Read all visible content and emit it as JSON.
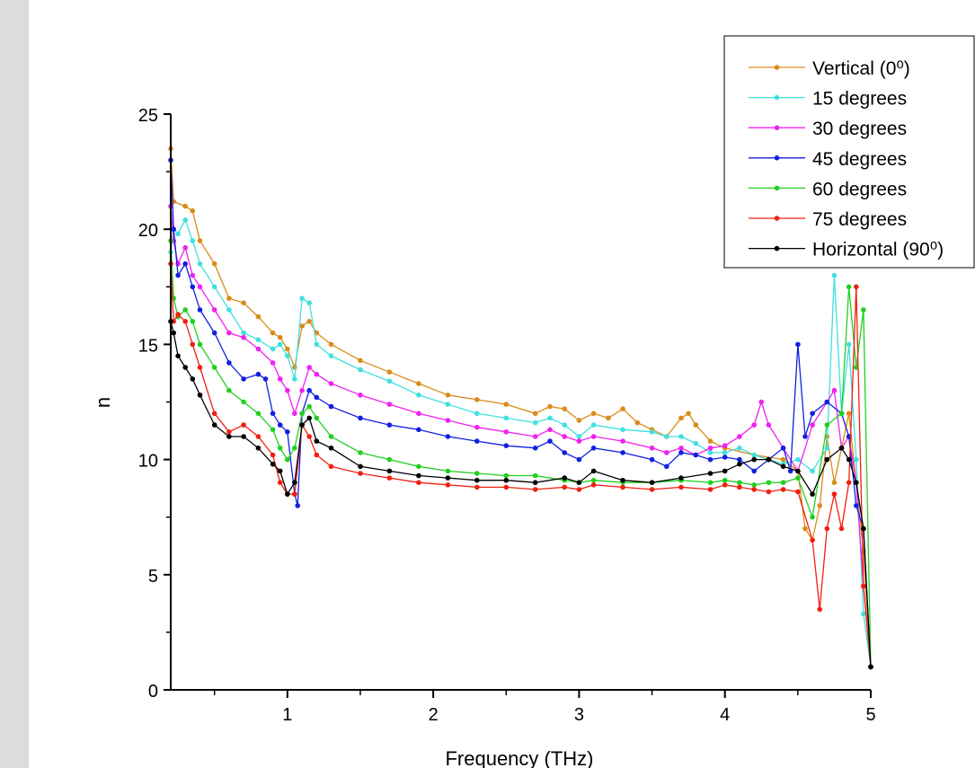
{
  "chart_data": {
    "type": "line",
    "title": "",
    "xlabel": "Frequency (THz)",
    "ylabel": "n",
    "xlim": [
      0.2,
      5.0
    ],
    "ylim": [
      0,
      25
    ],
    "x_ticks": [
      "1",
      "2",
      "3",
      "4",
      "5"
    ],
    "y_ticks": [
      "0",
      "5",
      "10",
      "15",
      "20",
      "25"
    ],
    "grid": false,
    "legend_position": "top-right",
    "series": [
      {
        "name": "Vertical (0⁰)",
        "color": "#d98c19",
        "x": [
          0.2,
          0.22,
          0.3,
          0.35,
          0.4,
          0.5,
          0.6,
          0.7,
          0.8,
          0.9,
          0.95,
          1.0,
          1.05,
          1.1,
          1.15,
          1.2,
          1.3,
          1.5,
          1.7,
          1.9,
          2.1,
          2.3,
          2.5,
          2.7,
          2.8,
          2.9,
          3.0,
          3.1,
          3.2,
          3.3,
          3.4,
          3.5,
          3.6,
          3.7,
          3.75,
          3.8,
          3.9,
          4.0,
          4.2,
          4.4,
          4.5,
          4.55,
          4.6,
          4.65,
          4.7,
          4.75,
          4.8,
          4.85,
          4.9,
          4.95,
          5.0
        ],
        "y": [
          23.5,
          21.2,
          21.0,
          20.8,
          19.5,
          18.5,
          17.0,
          16.8,
          16.2,
          15.5,
          15.3,
          14.8,
          14.0,
          15.8,
          16.0,
          15.5,
          15.0,
          14.3,
          13.8,
          13.3,
          12.8,
          12.6,
          12.4,
          12.0,
          12.3,
          12.2,
          11.7,
          12.0,
          11.8,
          12.2,
          11.6,
          11.3,
          11.0,
          11.8,
          12.0,
          11.5,
          10.8,
          10.5,
          10.2,
          10.0,
          9.5,
          7.0,
          6.5,
          8.0,
          11.0,
          9.0,
          10.5,
          12.0,
          9.0,
          6.0,
          1.0
        ]
      },
      {
        "name": "15 degrees",
        "color": "#40e0e0",
        "x": [
          0.2,
          0.22,
          0.25,
          0.3,
          0.35,
          0.4,
          0.5,
          0.6,
          0.7,
          0.8,
          0.9,
          0.95,
          1.0,
          1.05,
          1.1,
          1.15,
          1.2,
          1.3,
          1.5,
          1.7,
          1.9,
          2.1,
          2.3,
          2.5,
          2.7,
          2.8,
          2.9,
          3.0,
          3.1,
          3.3,
          3.5,
          3.6,
          3.7,
          3.8,
          3.9,
          4.0,
          4.1,
          4.2,
          4.3,
          4.4,
          4.5,
          4.6,
          4.7,
          4.75,
          4.8,
          4.85,
          4.9,
          4.95,
          5.0
        ],
        "y": [
          19.0,
          20.0,
          19.8,
          20.4,
          19.5,
          18.5,
          17.5,
          16.5,
          15.5,
          15.2,
          14.8,
          15.0,
          14.5,
          13.5,
          17.0,
          16.8,
          15.0,
          14.5,
          13.9,
          13.4,
          12.8,
          12.4,
          12.0,
          11.8,
          11.6,
          11.8,
          11.5,
          11.0,
          11.5,
          11.3,
          11.2,
          11.0,
          11.0,
          10.7,
          10.3,
          10.3,
          10.5,
          10.2,
          10.0,
          9.8,
          10.0,
          9.5,
          10.5,
          18.0,
          12.0,
          15.0,
          10.0,
          3.3,
          1.0
        ]
      },
      {
        "name": "30 degrees",
        "color": "#f020f0",
        "x": [
          0.2,
          0.22,
          0.25,
          0.3,
          0.35,
          0.4,
          0.5,
          0.6,
          0.7,
          0.8,
          0.9,
          0.95,
          1.0,
          1.05,
          1.1,
          1.15,
          1.2,
          1.3,
          1.5,
          1.7,
          1.9,
          2.1,
          2.3,
          2.5,
          2.7,
          2.8,
          2.9,
          3.0,
          3.1,
          3.3,
          3.5,
          3.6,
          3.7,
          3.8,
          3.9,
          4.0,
          4.1,
          4.2,
          4.25,
          4.3,
          4.4,
          4.5,
          4.6,
          4.7,
          4.75,
          4.8,
          4.85,
          4.9,
          4.95,
          5.0
        ],
        "y": [
          21.0,
          19.5,
          18.5,
          19.2,
          18.0,
          17.5,
          16.5,
          15.5,
          15.3,
          14.8,
          14.2,
          13.5,
          13.0,
          12.0,
          13.0,
          14.0,
          13.7,
          13.3,
          12.8,
          12.4,
          12.0,
          11.7,
          11.4,
          11.2,
          11.0,
          11.3,
          11.0,
          10.8,
          11.0,
          10.8,
          10.5,
          10.3,
          10.5,
          10.2,
          10.5,
          10.6,
          11.0,
          11.5,
          12.5,
          11.5,
          10.5,
          9.5,
          11.5,
          12.5,
          13.0,
          10.5,
          11.0,
          9.0,
          4.5,
          1.0
        ]
      },
      {
        "name": "45 degrees",
        "color": "#1020e0",
        "x": [
          0.2,
          0.22,
          0.25,
          0.3,
          0.35,
          0.4,
          0.5,
          0.6,
          0.7,
          0.8,
          0.85,
          0.9,
          0.95,
          1.0,
          1.05,
          1.07,
          1.1,
          1.15,
          1.2,
          1.3,
          1.5,
          1.7,
          1.9,
          2.1,
          2.3,
          2.5,
          2.7,
          2.8,
          2.9,
          3.0,
          3.1,
          3.3,
          3.5,
          3.6,
          3.7,
          3.8,
          3.9,
          4.0,
          4.1,
          4.2,
          4.3,
          4.4,
          4.45,
          4.5,
          4.55,
          4.6,
          4.7,
          4.8,
          4.85,
          4.9,
          4.95,
          5.0
        ],
        "y": [
          23.0,
          20.0,
          18.0,
          18.5,
          17.5,
          16.5,
          15.5,
          14.2,
          13.5,
          13.7,
          13.5,
          12.0,
          11.5,
          11.2,
          8.5,
          8.0,
          12.0,
          13.0,
          12.7,
          12.3,
          11.8,
          11.5,
          11.3,
          11.0,
          10.8,
          10.6,
          10.5,
          10.8,
          10.3,
          10.0,
          10.5,
          10.3,
          10.0,
          9.7,
          10.3,
          10.2,
          10.0,
          10.1,
          10.0,
          9.5,
          10.0,
          10.5,
          9.5,
          15.0,
          11.0,
          12.0,
          12.5,
          12.0,
          11.0,
          8.0,
          7.0,
          1.0
        ]
      },
      {
        "name": "60 degrees",
        "color": "#20d020",
        "x": [
          0.2,
          0.22,
          0.25,
          0.3,
          0.35,
          0.4,
          0.5,
          0.6,
          0.7,
          0.8,
          0.9,
          0.95,
          1.0,
          1.05,
          1.1,
          1.15,
          1.2,
          1.3,
          1.5,
          1.7,
          1.9,
          2.1,
          2.3,
          2.5,
          2.7,
          2.9,
          3.0,
          3.1,
          3.3,
          3.5,
          3.7,
          3.9,
          4.0,
          4.1,
          4.2,
          4.3,
          4.4,
          4.5,
          4.6,
          4.7,
          4.8,
          4.85,
          4.9,
          4.95,
          5.0
        ],
        "y": [
          19.5,
          17.0,
          16.2,
          16.5,
          16.0,
          15.0,
          14.0,
          13.0,
          12.5,
          12.0,
          11.3,
          10.5,
          10.0,
          10.5,
          12.0,
          12.3,
          11.8,
          11.0,
          10.3,
          10.0,
          9.7,
          9.5,
          9.4,
          9.3,
          9.3,
          9.1,
          9.0,
          9.1,
          9.0,
          9.0,
          9.1,
          9.0,
          9.1,
          9.0,
          8.9,
          9.0,
          9.0,
          9.2,
          7.5,
          11.5,
          12.0,
          17.5,
          14.0,
          16.5,
          1.0
        ]
      },
      {
        "name": "75 degrees",
        "color": "#f02010",
        "x": [
          0.2,
          0.22,
          0.25,
          0.3,
          0.35,
          0.4,
          0.5,
          0.6,
          0.7,
          0.8,
          0.9,
          0.95,
          1.0,
          1.05,
          1.1,
          1.15,
          1.2,
          1.3,
          1.5,
          1.7,
          1.9,
          2.1,
          2.3,
          2.5,
          2.7,
          2.9,
          3.0,
          3.1,
          3.3,
          3.5,
          3.7,
          3.9,
          4.0,
          4.1,
          4.2,
          4.3,
          4.4,
          4.5,
          4.6,
          4.65,
          4.7,
          4.75,
          4.8,
          4.85,
          4.9,
          4.95,
          5.0
        ],
        "y": [
          18.5,
          16.0,
          16.3,
          16.0,
          15.0,
          14.0,
          12.0,
          11.2,
          11.5,
          11.0,
          10.2,
          9.0,
          8.5,
          8.5,
          11.5,
          11.0,
          10.2,
          9.7,
          9.4,
          9.2,
          9.0,
          8.9,
          8.8,
          8.8,
          8.7,
          8.8,
          8.7,
          8.9,
          8.8,
          8.7,
          8.8,
          8.7,
          8.9,
          8.8,
          8.7,
          8.6,
          8.7,
          8.6,
          6.5,
          3.5,
          7.0,
          8.5,
          7.0,
          9.0,
          17.5,
          4.5,
          1.0
        ]
      },
      {
        "name": "Horizontal (90⁰)",
        "color": "#000000",
        "x": [
          0.2,
          0.22,
          0.25,
          0.3,
          0.35,
          0.4,
          0.5,
          0.6,
          0.7,
          0.8,
          0.9,
          0.95,
          1.0,
          1.05,
          1.1,
          1.15,
          1.2,
          1.3,
          1.5,
          1.7,
          1.9,
          2.1,
          2.3,
          2.5,
          2.7,
          2.9,
          3.0,
          3.1,
          3.3,
          3.5,
          3.7,
          3.9,
          4.0,
          4.1,
          4.2,
          4.3,
          4.4,
          4.5,
          4.6,
          4.7,
          4.8,
          4.85,
          4.9,
          4.95,
          5.0
        ],
        "y": [
          16.0,
          15.5,
          14.5,
          14.0,
          13.5,
          12.8,
          11.5,
          11.0,
          11.0,
          10.5,
          9.8,
          9.5,
          8.5,
          9.0,
          11.5,
          11.8,
          10.8,
          10.5,
          9.7,
          9.5,
          9.3,
          9.2,
          9.1,
          9.1,
          9.0,
          9.2,
          9.0,
          9.5,
          9.1,
          9.0,
          9.2,
          9.4,
          9.5,
          9.8,
          10.0,
          10.0,
          9.7,
          9.5,
          8.5,
          10.0,
          10.5,
          10.0,
          9.0,
          7.0,
          1.0
        ]
      }
    ]
  }
}
